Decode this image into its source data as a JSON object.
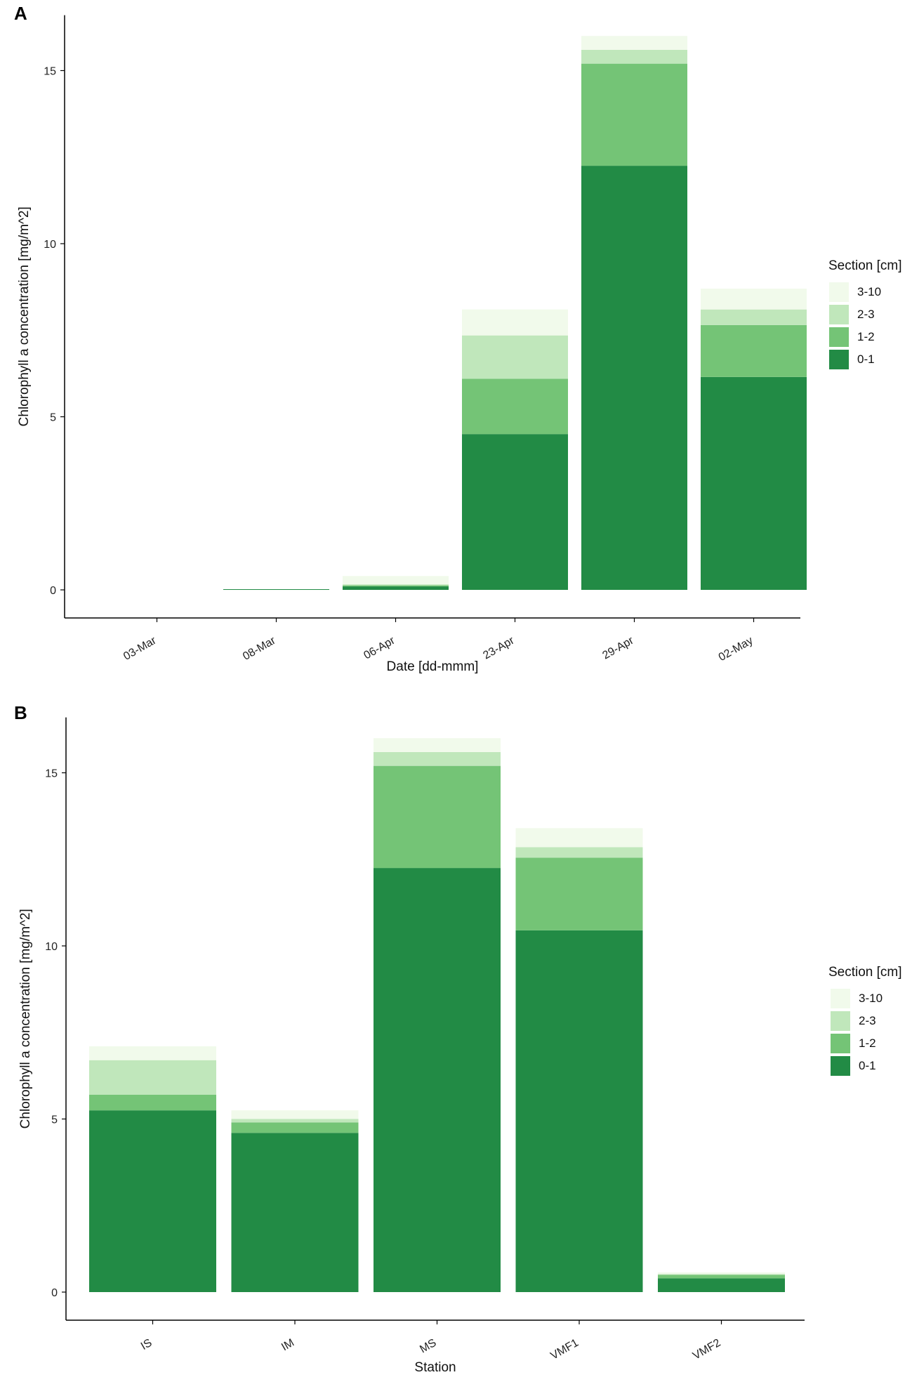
{
  "chart_data": [
    {
      "type": "bar",
      "stacked": true,
      "panel": "A",
      "categories": [
        "03-Mar",
        "08-Mar",
        "06-Apr",
        "23-Apr",
        "29-Apr",
        "02-May"
      ],
      "series": [
        {
          "name": "0-1",
          "values": [
            0,
            0.02,
            0.1,
            4.5,
            12.25,
            6.15
          ]
        },
        {
          "name": "1-2",
          "values": [
            0,
            0,
            0.03,
            1.6,
            2.95,
            1.5
          ]
        },
        {
          "name": "2-3",
          "values": [
            0,
            0,
            0.03,
            1.25,
            0.4,
            0.45
          ]
        },
        {
          "name": "3-10",
          "values": [
            0,
            0,
            0.24,
            0.75,
            0.4,
            0.6
          ]
        }
      ],
      "xlabel": "Date [dd-mmm]",
      "ylabel": "Chlorophyll a concentration [mg/m^2]",
      "ylim": [
        -0.8,
        16.6
      ],
      "yticks": [
        "0",
        "5",
        "10",
        "15"
      ],
      "legend_title": "Section [cm]",
      "legend_position": "right"
    },
    {
      "type": "bar",
      "stacked": true,
      "panel": "B",
      "categories": [
        "IS",
        "IM",
        "MS",
        "VMF1",
        "VMF2"
      ],
      "series": [
        {
          "name": "0-1",
          "values": [
            5.25,
            4.6,
            12.25,
            10.45,
            0.4
          ]
        },
        {
          "name": "1-2",
          "values": [
            0.45,
            0.3,
            2.95,
            2.1,
            0.1
          ]
        },
        {
          "name": "2-3",
          "values": [
            1.0,
            0.1,
            0.4,
            0.3,
            0.02
          ]
        },
        {
          "name": "3-10",
          "values": [
            0.4,
            0.25,
            0.4,
            0.55,
            0.05
          ]
        }
      ],
      "xlabel": "Station",
      "ylabel": "Chlorophyll a concentration [mg/m^2]",
      "ylim": [
        -0.8,
        16.6
      ],
      "yticks": [
        "0",
        "5",
        "10",
        "15"
      ],
      "legend_title": "Section [cm]",
      "legend_position": "right"
    }
  ],
  "panel_labels": [
    "A",
    "B"
  ],
  "colors": {
    "0-1": "#228b45",
    "1-2": "#74c476",
    "2-3": "#c0e7bb",
    "3-10": "#f1faeb"
  },
  "legend": {
    "title": "Section [cm]",
    "items": [
      "3-10",
      "2-3",
      "1-2",
      "0-1"
    ]
  }
}
